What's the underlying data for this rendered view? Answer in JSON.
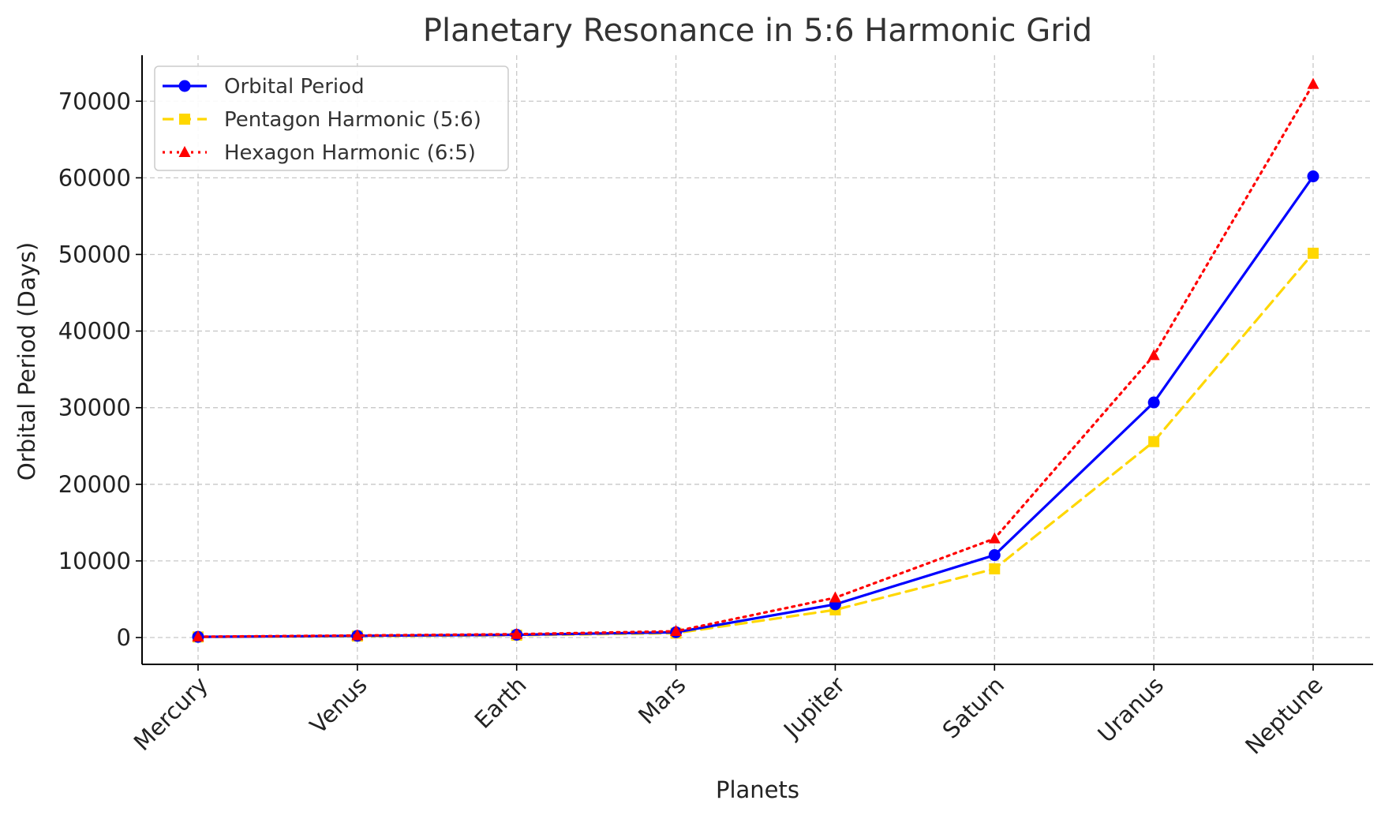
{
  "chart_data": {
    "type": "line",
    "title": "Planetary Resonance in 5:6 Harmonic Grid",
    "xlabel": "Planets",
    "ylabel": "Orbital Period (Days)",
    "categories": [
      "Mercury",
      "Venus",
      "Earth",
      "Mars",
      "Jupiter",
      "Saturn",
      "Uranus",
      "Neptune"
    ],
    "ylim": [
      -3500,
      76000
    ],
    "yticks": [
      0,
      10000,
      20000,
      30000,
      40000,
      50000,
      60000,
      70000
    ],
    "grid": true,
    "legend_position": "top-left",
    "series": [
      {
        "name": "Orbital Period",
        "values": [
          88,
          225,
          365,
          687,
          4333,
          10759,
          30687,
          60190
        ],
        "color": "#0000ff",
        "line_style": "solid",
        "marker": "circle"
      },
      {
        "name": "Pentagon Harmonic (5:6)",
        "values": [
          73,
          187,
          304,
          572,
          3611,
          8966,
          25572,
          50158
        ],
        "color": "#ffd700",
        "line_style": "dashed",
        "marker": "square"
      },
      {
        "name": "Hexagon Harmonic (6:5)",
        "values": [
          106,
          270,
          438,
          824,
          5200,
          12911,
          36824,
          72228
        ],
        "color": "#ff0000",
        "line_style": "dotted",
        "marker": "triangle"
      }
    ]
  }
}
